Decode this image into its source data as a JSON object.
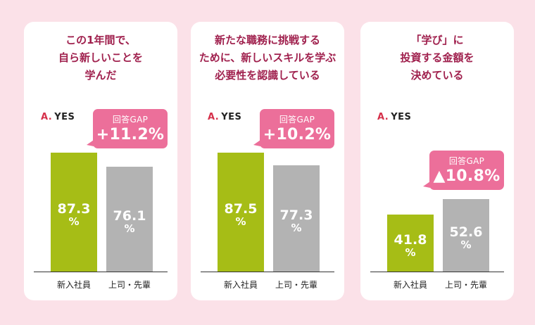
{
  "colors": {
    "background": "#fbe1e8",
    "title": "#a0214e",
    "new_employee_bar": "#a6bd16",
    "boss_bar": "#b3b3b3",
    "callout": "#ec6f9a",
    "answer_mark": "#d5304a"
  },
  "chart_data": [
    {
      "type": "bar",
      "title": "この1年間で、\n自ら新しいことを\n学んだ",
      "answer_mark": "A.",
      "answer": "YES",
      "categories": [
        "新入社員",
        "上司・先輩"
      ],
      "values": [
        87.3,
        76.1
      ],
      "value_labels": [
        "87.3",
        "76.1"
      ],
      "unit": "%",
      "gap_label": "回答GAP",
      "gap_value": "+11.2%",
      "ylim": [
        0,
        100
      ]
    },
    {
      "type": "bar",
      "title": "新たな職務に挑戦する\nために、新しいスキルを学ぶ\n必要性を認識している",
      "answer_mark": "A.",
      "answer": "YES",
      "categories": [
        "新入社員",
        "上司・先輩"
      ],
      "values": [
        87.5,
        77.3
      ],
      "value_labels": [
        "87.5",
        "77.3"
      ],
      "unit": "%",
      "gap_label": "回答GAP",
      "gap_value": "+10.2%",
      "ylim": [
        0,
        100
      ]
    },
    {
      "type": "bar",
      "title": "「学び」に\n投資する金額を\n決めている",
      "answer_mark": "A.",
      "answer": "YES",
      "categories": [
        "新入社員",
        "上司・先輩"
      ],
      "values": [
        41.8,
        52.6
      ],
      "value_labels": [
        "41.8",
        "52.6"
      ],
      "unit": "%",
      "gap_label": "回答GAP",
      "gap_value": "▲10.8%",
      "ylim": [
        0,
        100
      ]
    }
  ]
}
